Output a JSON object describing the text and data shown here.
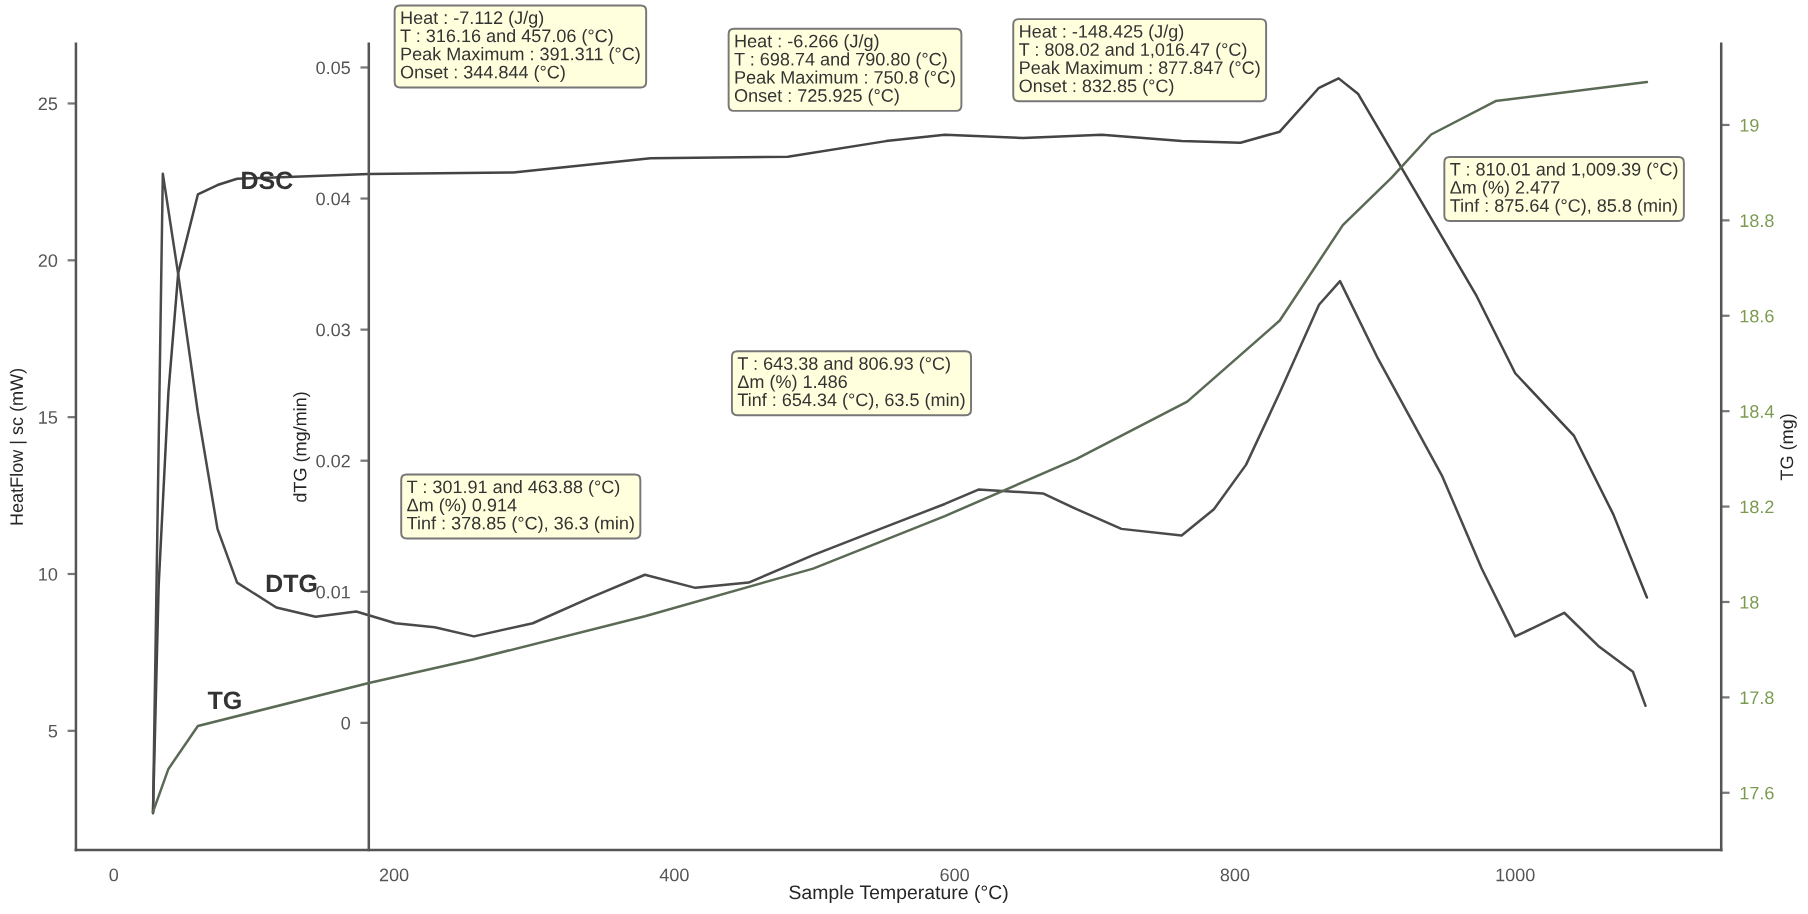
{
  "chart_data": {
    "type": "line",
    "xlabel": "Sample Temperature (°C)",
    "ylabel": "HeatFlow | sc (mW)",
    "y2label": "dTG (mg/min)",
    "y3label": "TG (mg)",
    "xlim": [
      -27,
      1147
    ],
    "xticks": [
      0,
      200,
      400,
      600,
      800,
      1000
    ],
    "ylim": [
      1.2,
      26.9
    ],
    "yticks": [
      5,
      10,
      15,
      20,
      25
    ],
    "y2lim": [
      -0.0097,
      0.0518
    ],
    "y2ticks": [
      0,
      0.01,
      0.02,
      0.03,
      0.04,
      0.05
    ],
    "y3lim": [
      17.48,
      19.17
    ],
    "y3ticks": [
      17.6,
      17.8,
      18,
      18.2,
      18.4,
      18.6,
      18.8,
      19
    ],
    "grid": false,
    "legend": false,
    "series": [
      {
        "name": "DSC",
        "color": "#444444",
        "x": [
          28,
          32,
          39,
          46,
          60,
          74,
          88,
          182,
          285,
          383,
          481,
          551,
          593,
          649,
          705,
          762,
          804,
          832,
          860,
          874,
          888,
          930,
          972,
          1000,
          1042,
          1070,
          1094
        ],
        "values": [
          2.4,
          9.6,
          15.8,
          19.6,
          22.1,
          22.4,
          22.6,
          22.75,
          22.8,
          23.25,
          23.3,
          23.8,
          24.0,
          23.9,
          24.0,
          23.8,
          23.75,
          24.1,
          25.5,
          25.8,
          25.3,
          22.1,
          18.9,
          16.4,
          14.4,
          11.9,
          9.25
        ]
      },
      {
        "name": "DTG",
        "color": "#4a4a4a",
        "axis": "y2",
        "x": [
          28,
          35,
          46,
          60,
          74,
          88,
          116,
          144,
          173,
          201,
          229,
          257,
          299,
          341,
          379,
          415,
          453,
          499,
          547,
          593,
          617,
          663,
          687,
          719,
          762,
          785,
          808,
          832,
          860,
          875,
          902,
          948,
          976,
          1000,
          1014,
          1035,
          1060,
          1084,
          1093
        ],
        "values": [
          -0.0069,
          0.0419,
          0.0342,
          0.0237,
          0.0148,
          0.0107,
          0.0088,
          0.0081,
          0.0085,
          0.0076,
          0.0073,
          0.0066,
          0.0076,
          0.0096,
          0.0113,
          0.0103,
          0.0107,
          0.0128,
          0.0148,
          0.0167,
          0.0178,
          0.0175,
          0.0163,
          0.0148,
          0.0143,
          0.0163,
          0.0197,
          0.0252,
          0.0319,
          0.0337,
          0.0278,
          0.0188,
          0.0118,
          0.0066,
          0.0073,
          0.0084,
          0.0058,
          0.0039,
          0.0013
        ]
      },
      {
        "name": "TG",
        "color": "#5a6a55",
        "axis": "y3",
        "x": [
          28,
          39,
          60,
          182,
          257,
          379,
          499,
          593,
          687,
          766,
          832,
          877,
          912,
          940,
          986,
          1094
        ],
        "values": [
          17.56,
          17.65,
          17.74,
          17.83,
          17.88,
          17.97,
          18.07,
          18.18,
          18.3,
          18.42,
          18.59,
          18.79,
          18.89,
          18.98,
          19.05,
          19.09
        ]
      }
    ],
    "annotations": [
      "Heat : -7.112 (J/g)\nT : 316.16 and 457.06 (°C)\nPeak Maximum : 391.311 (°C)\nOnset : 344.844 (°C)",
      "Heat : -6.266 (J/g)\nT : 698.74 and 790.80 (°C)\nPeak Maximum : 750.8 (°C)\nOnset : 725.925 (°C)",
      "Heat : -148.425 (J/g)\nT : 808.02 and 1,016.47 (°C)\nPeak Maximum : 877.847 (°C)\nOnset : 832.85 (°C)",
      "T : 810.01 and 1,009.39 (°C)\nΔm (%) 2.477\nTinf : 875.64 (°C), 85.8 (min)",
      "T : 643.38 and 806.93 (°C)\nΔm (%) 1.486\nTinf : 654.34 (°C), 63.5 (min)",
      "T : 301.91 and 463.88 (°C)\nΔm (%) 0.914\nTinf : 378.85 (°C), 36.3 (min)"
    ]
  }
}
